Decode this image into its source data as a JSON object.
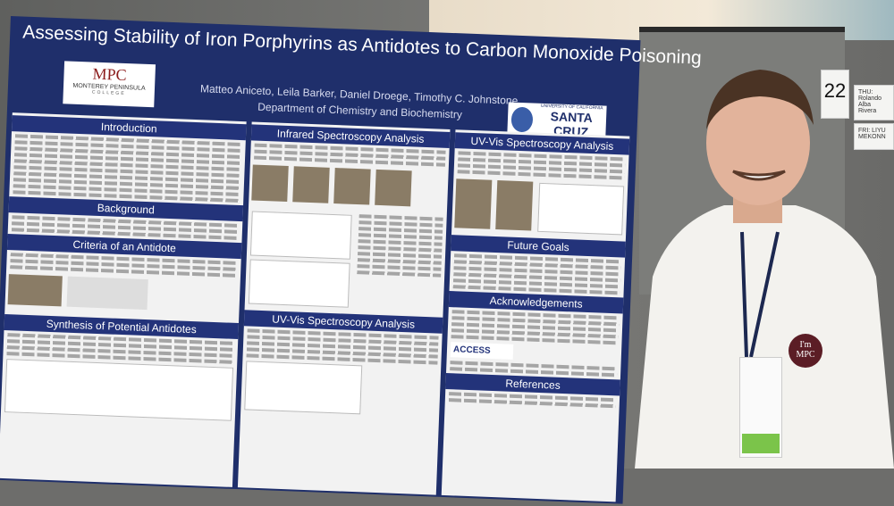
{
  "poster": {
    "title": "Assessing Stability of Iron Porphyrins as Antidotes to Carbon Monoxide Poisoning",
    "authors": "Matteo Aniceto, Leila Barker, Daniel Droege, Timothy C. Johnstone",
    "department": "Department of Chemistry and Biochemistry",
    "left_logo": {
      "name": "MPC",
      "subtitle": "Monterey Peninsula",
      "small": "College"
    },
    "right_logo": {
      "top": "University of California",
      "name": "Santa Cruz"
    },
    "sections": {
      "introduction": "Introduction",
      "background": "Background",
      "criteria": "Criteria of an Antidote",
      "synthesis": "Synthesis of Potential Antidotes",
      "infrared": "Infrared Spectroscopy Analysis",
      "uvvis_middle": "UV-Vis Spectroscopy Analysis",
      "uvvis_right": "UV-Vis Spectroscopy Analysis",
      "future": "Future Goals",
      "acknowledgements": "Acknowledgements",
      "references": "References"
    },
    "acknowledgement_logo": "ACCESS"
  },
  "booth": {
    "number": "22",
    "cards": [
      "THU: Rolando Alba Rivera",
      "FRI: LIYU MEKONN"
    ]
  },
  "pin": {
    "line1": "I'm",
    "line2": "MPC",
    "color": "#5b1d25"
  },
  "colors": {
    "poster_blue": "#1f2f6b",
    "header_blue": "#23337a",
    "lanyard": "#1c2850",
    "badge_green": "#7bc44a"
  }
}
